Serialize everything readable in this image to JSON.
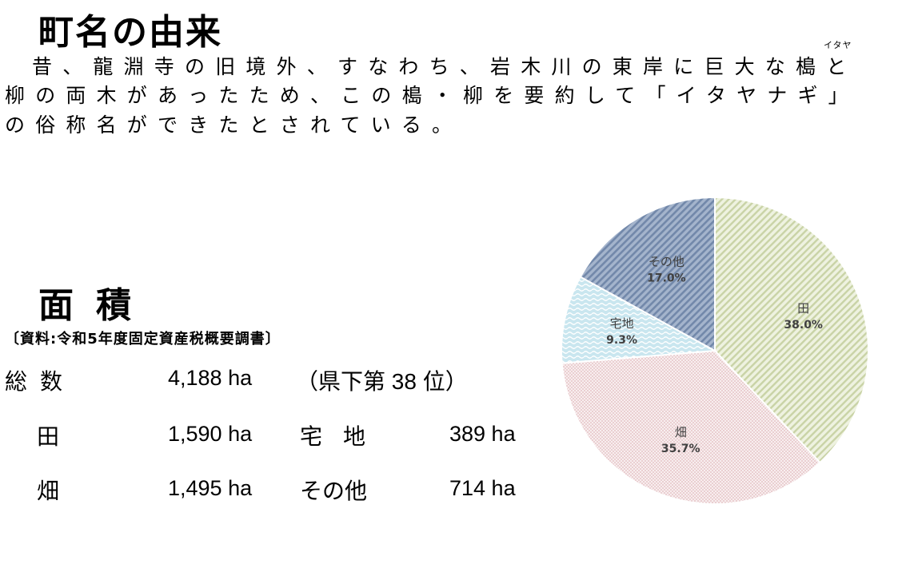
{
  "origin": {
    "title": "町名の由来",
    "ruby": "イタヤ",
    "lines": [
      "昔、龍淵寺の旧境外、すなわち、岩木川の東岸に巨大な槝と",
      "柳の両木があったため、この槝・柳を要約して「イタヤナギ」",
      "の俗称名ができたとされている。"
    ]
  },
  "area": {
    "title_chars": [
      "面",
      "積"
    ],
    "source": "〔資料:令和5年度固定資産税概要調書〕",
    "total_label": "総数",
    "total_value": "4,188 ha",
    "rank_open": "（",
    "rank_pre": "県下第",
    "rank_num": " 38 ",
    "rank_post": "位",
    "rank_close": "）",
    "rows": {
      "ta_label": "田",
      "ta_value": "1,590 ha",
      "taku_label": "宅地",
      "taku_value": "389 ha",
      "hata_label": "畑",
      "hata_value": "1,495 ha",
      "other_label": "その他",
      "other_value": "714 ha"
    }
  },
  "chart_data": {
    "type": "pie",
    "slices": [
      {
        "label": "田",
        "value": 38.0,
        "display": "38.0%",
        "color": "#c9d3a6",
        "pattern": "diagonal-stripes"
      },
      {
        "label": "畑",
        "value": 35.7,
        "display": "35.7%",
        "color": "#e6c6c8",
        "pattern": "dots"
      },
      {
        "label": "宅地",
        "value": 9.3,
        "display": "9.3%",
        "color": "#a9d7e4",
        "pattern": "waves"
      },
      {
        "label": "その他",
        "value": 17.0,
        "display": "17.0%",
        "color": "#7d93b5",
        "pattern": "diagonal-stripes"
      }
    ],
    "start_angle": "12 o'clock",
    "direction": "clockwise"
  }
}
